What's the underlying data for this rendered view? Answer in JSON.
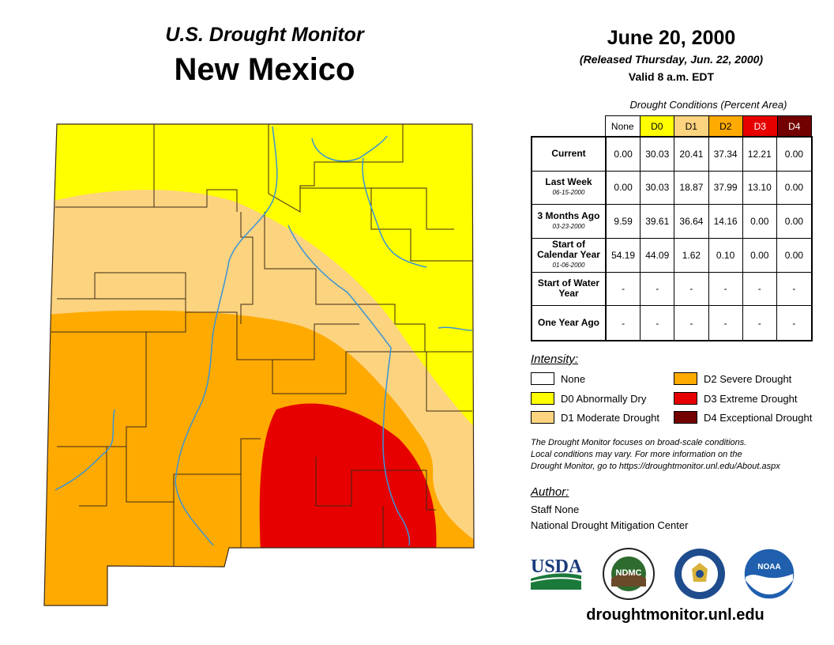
{
  "title": "U.S. Drought Monitor",
  "state": "New Mexico",
  "date": "June 20, 2000",
  "released": "(Released Thursday, Jun. 22, 2000)",
  "valid": "Valid 8 a.m. EDT",
  "table": {
    "caption": "Drought Conditions (Percent Area)",
    "columns": [
      {
        "label": "None",
        "color": "#ffffff",
        "text_color": "#000000"
      },
      {
        "label": "D0",
        "color": "#ffff00",
        "text_color": "#000000"
      },
      {
        "label": "D1",
        "color": "#fcd37f",
        "text_color": "#000000"
      },
      {
        "label": "D2",
        "color": "#ffaa00",
        "text_color": "#000000"
      },
      {
        "label": "D3",
        "color": "#e60000",
        "text_color": "#ffffff"
      },
      {
        "label": "D4",
        "color": "#730000",
        "text_color": "#ffffff"
      }
    ],
    "rows": [
      {
        "label": "Current",
        "date": "",
        "values": [
          "0.00",
          "30.03",
          "20.41",
          "37.34",
          "12.21",
          "0.00"
        ]
      },
      {
        "label": "Last Week",
        "date": "06-15-2000",
        "values": [
          "0.00",
          "30.03",
          "18.87",
          "37.99",
          "13.10",
          "0.00"
        ]
      },
      {
        "label": "3 Months Ago",
        "date": "03-23-2000",
        "values": [
          "9.59",
          "39.61",
          "36.64",
          "14.16",
          "0.00",
          "0.00"
        ]
      },
      {
        "label": "Start of Calendar Year",
        "date": "01-06-2000",
        "values": [
          "54.19",
          "44.09",
          "1.62",
          "0.10",
          "0.00",
          "0.00"
        ]
      },
      {
        "label": "Start of Water Year",
        "date": "",
        "values": [
          "-",
          "-",
          "-",
          "-",
          "-",
          "-"
        ]
      },
      {
        "label": "One Year Ago",
        "date": "",
        "values": [
          "-",
          "-",
          "-",
          "-",
          "-",
          "-"
        ]
      }
    ]
  },
  "intensity": {
    "title": "Intensity:",
    "items": [
      {
        "label": "None",
        "color": "#ffffff"
      },
      {
        "label": "D0 Abnormally Dry",
        "color": "#ffff00"
      },
      {
        "label": "D1 Moderate Drought",
        "color": "#fcd37f"
      },
      {
        "label": "D2 Severe Drought",
        "color": "#ffaa00"
      },
      {
        "label": "D3 Extreme Drought",
        "color": "#e60000"
      },
      {
        "label": "D4 Exceptional Drought",
        "color": "#730000"
      }
    ]
  },
  "note": [
    "The Drought Monitor focuses on broad-scale conditions.",
    "Local conditions may vary. For more information on the",
    "Drought Monitor, go to https://droughtmonitor.unl.edu/About.aspx"
  ],
  "author": {
    "title": "Author:",
    "name": "Staff None",
    "org": "National Drought Mitigation Center"
  },
  "logos": [
    {
      "name": "usda-logo",
      "text": "USDA"
    },
    {
      "name": "ndmc-logo",
      "text": "NDMC"
    },
    {
      "name": "doc-seal",
      "text": ""
    },
    {
      "name": "noaa-logo",
      "text": "NOAA"
    }
  ],
  "website": "droughtmonitor.unl.edu",
  "colors": {
    "river": "#3a94d6",
    "county_line": "#3b2a1a"
  }
}
